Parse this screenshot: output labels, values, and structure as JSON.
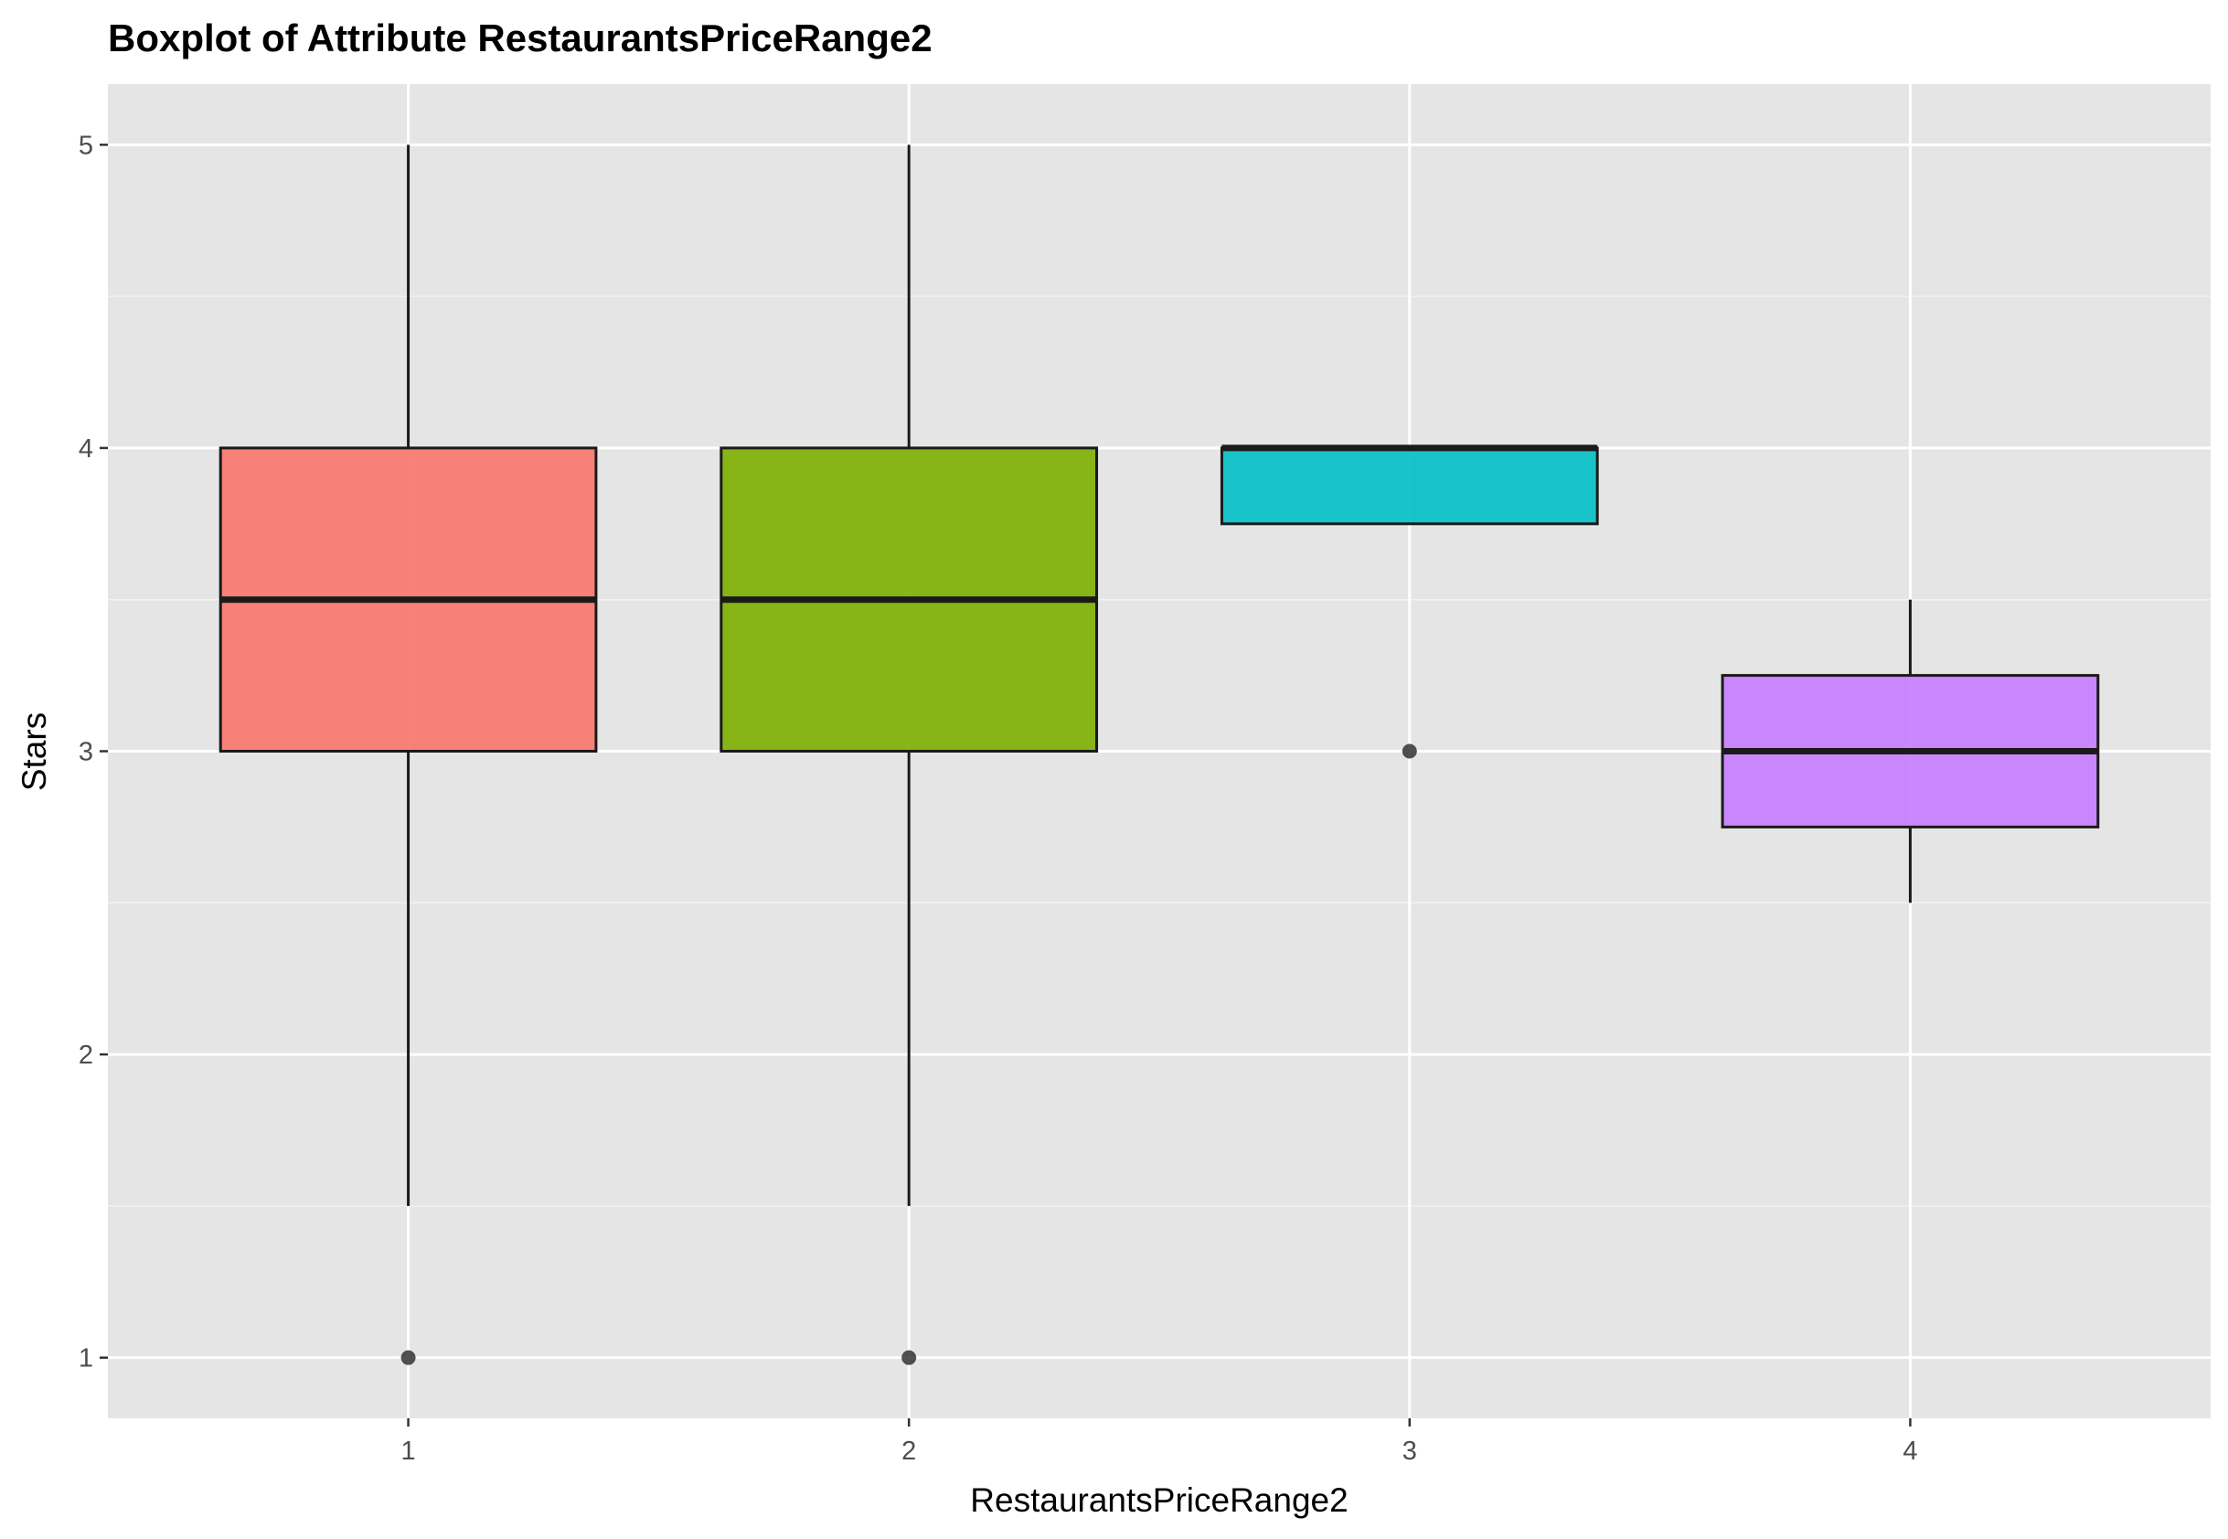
{
  "chart_data": {
    "type": "boxplot",
    "title": "Boxplot of Attribute RestaurantsPriceRange2",
    "xlabel": "RestaurantsPriceRange2",
    "ylabel": "Stars",
    "categories": [
      "1",
      "2",
      "3",
      "4"
    ],
    "ylim": [
      0.8,
      5.2
    ],
    "yticks": [
      1,
      2,
      3,
      4,
      5
    ],
    "grid": true,
    "legend": "none",
    "series": [
      {
        "category": "1",
        "color": "#F8766D",
        "whisker_low": 1.5,
        "q1": 3.0,
        "median": 3.5,
        "q3": 4.0,
        "whisker_high": 5.0,
        "outliers": [
          1.0
        ]
      },
      {
        "category": "2",
        "color": "#7CAE00",
        "whisker_low": 1.5,
        "q1": 3.0,
        "median": 3.5,
        "q3": 4.0,
        "whisker_high": 5.0,
        "outliers": [
          1.0
        ]
      },
      {
        "category": "3",
        "color": "#00BFC4",
        "whisker_low": 3.75,
        "q1": 3.75,
        "median": 4.0,
        "q3": 4.0,
        "whisker_high": 4.0,
        "outliers": [
          3.0
        ]
      },
      {
        "category": "4",
        "color": "#C77CFF",
        "whisker_low": 2.5,
        "q1": 2.75,
        "median": 3.0,
        "q3": 3.25,
        "whisker_high": 3.5,
        "outliers": []
      }
    ]
  }
}
